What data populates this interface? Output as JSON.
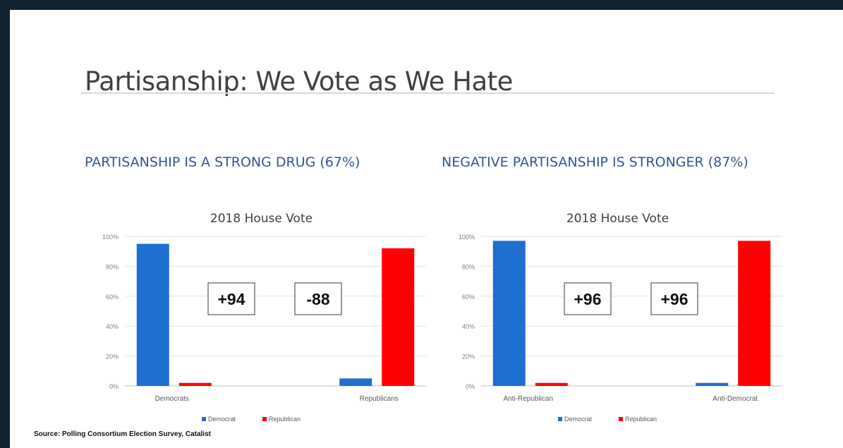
{
  "slide": {
    "title": "Partisanship: We Vote as We Hate",
    "source": "Source: Polling Consortium Election Survey, Catalist"
  },
  "panels": [
    {
      "heading": "PARTISANSHIP IS A STRONG DRUG (67%)"
    },
    {
      "heading": "NEGATIVE PARTISANSHIP IS STRONGER (87%)"
    }
  ],
  "colors": {
    "Democrat": "#1f6fd1",
    "Republican": "#ff0000",
    "heading": "#2f5597"
  },
  "chart_data": [
    {
      "type": "bar",
      "title": "2018 House Vote",
      "categories": [
        "Democrats",
        "Republicans"
      ],
      "series": [
        {
          "name": "Democrat",
          "values": [
            95,
            5
          ]
        },
        {
          "name": "Republican",
          "values": [
            2,
            92
          ]
        }
      ],
      "ylim": [
        0,
        100
      ],
      "yticks": [
        "0%",
        "20%",
        "40%",
        "60%",
        "80%",
        "100%"
      ],
      "grid": true,
      "legend": "bottom",
      "annotations": [
        "+94",
        "-88"
      ]
    },
    {
      "type": "bar",
      "title": "2018 House Vote",
      "categories": [
        "Anti-Republican",
        "Anti-Democrat"
      ],
      "series": [
        {
          "name": "Democrat",
          "values": [
            97,
            2
          ]
        },
        {
          "name": "Republican",
          "values": [
            2,
            97
          ]
        }
      ],
      "ylim": [
        0,
        100
      ],
      "yticks": [
        "0%",
        "20%",
        "40%",
        "60%",
        "80%",
        "100%"
      ],
      "grid": true,
      "legend": "bottom",
      "annotations": [
        "+96",
        "+96"
      ]
    }
  ]
}
